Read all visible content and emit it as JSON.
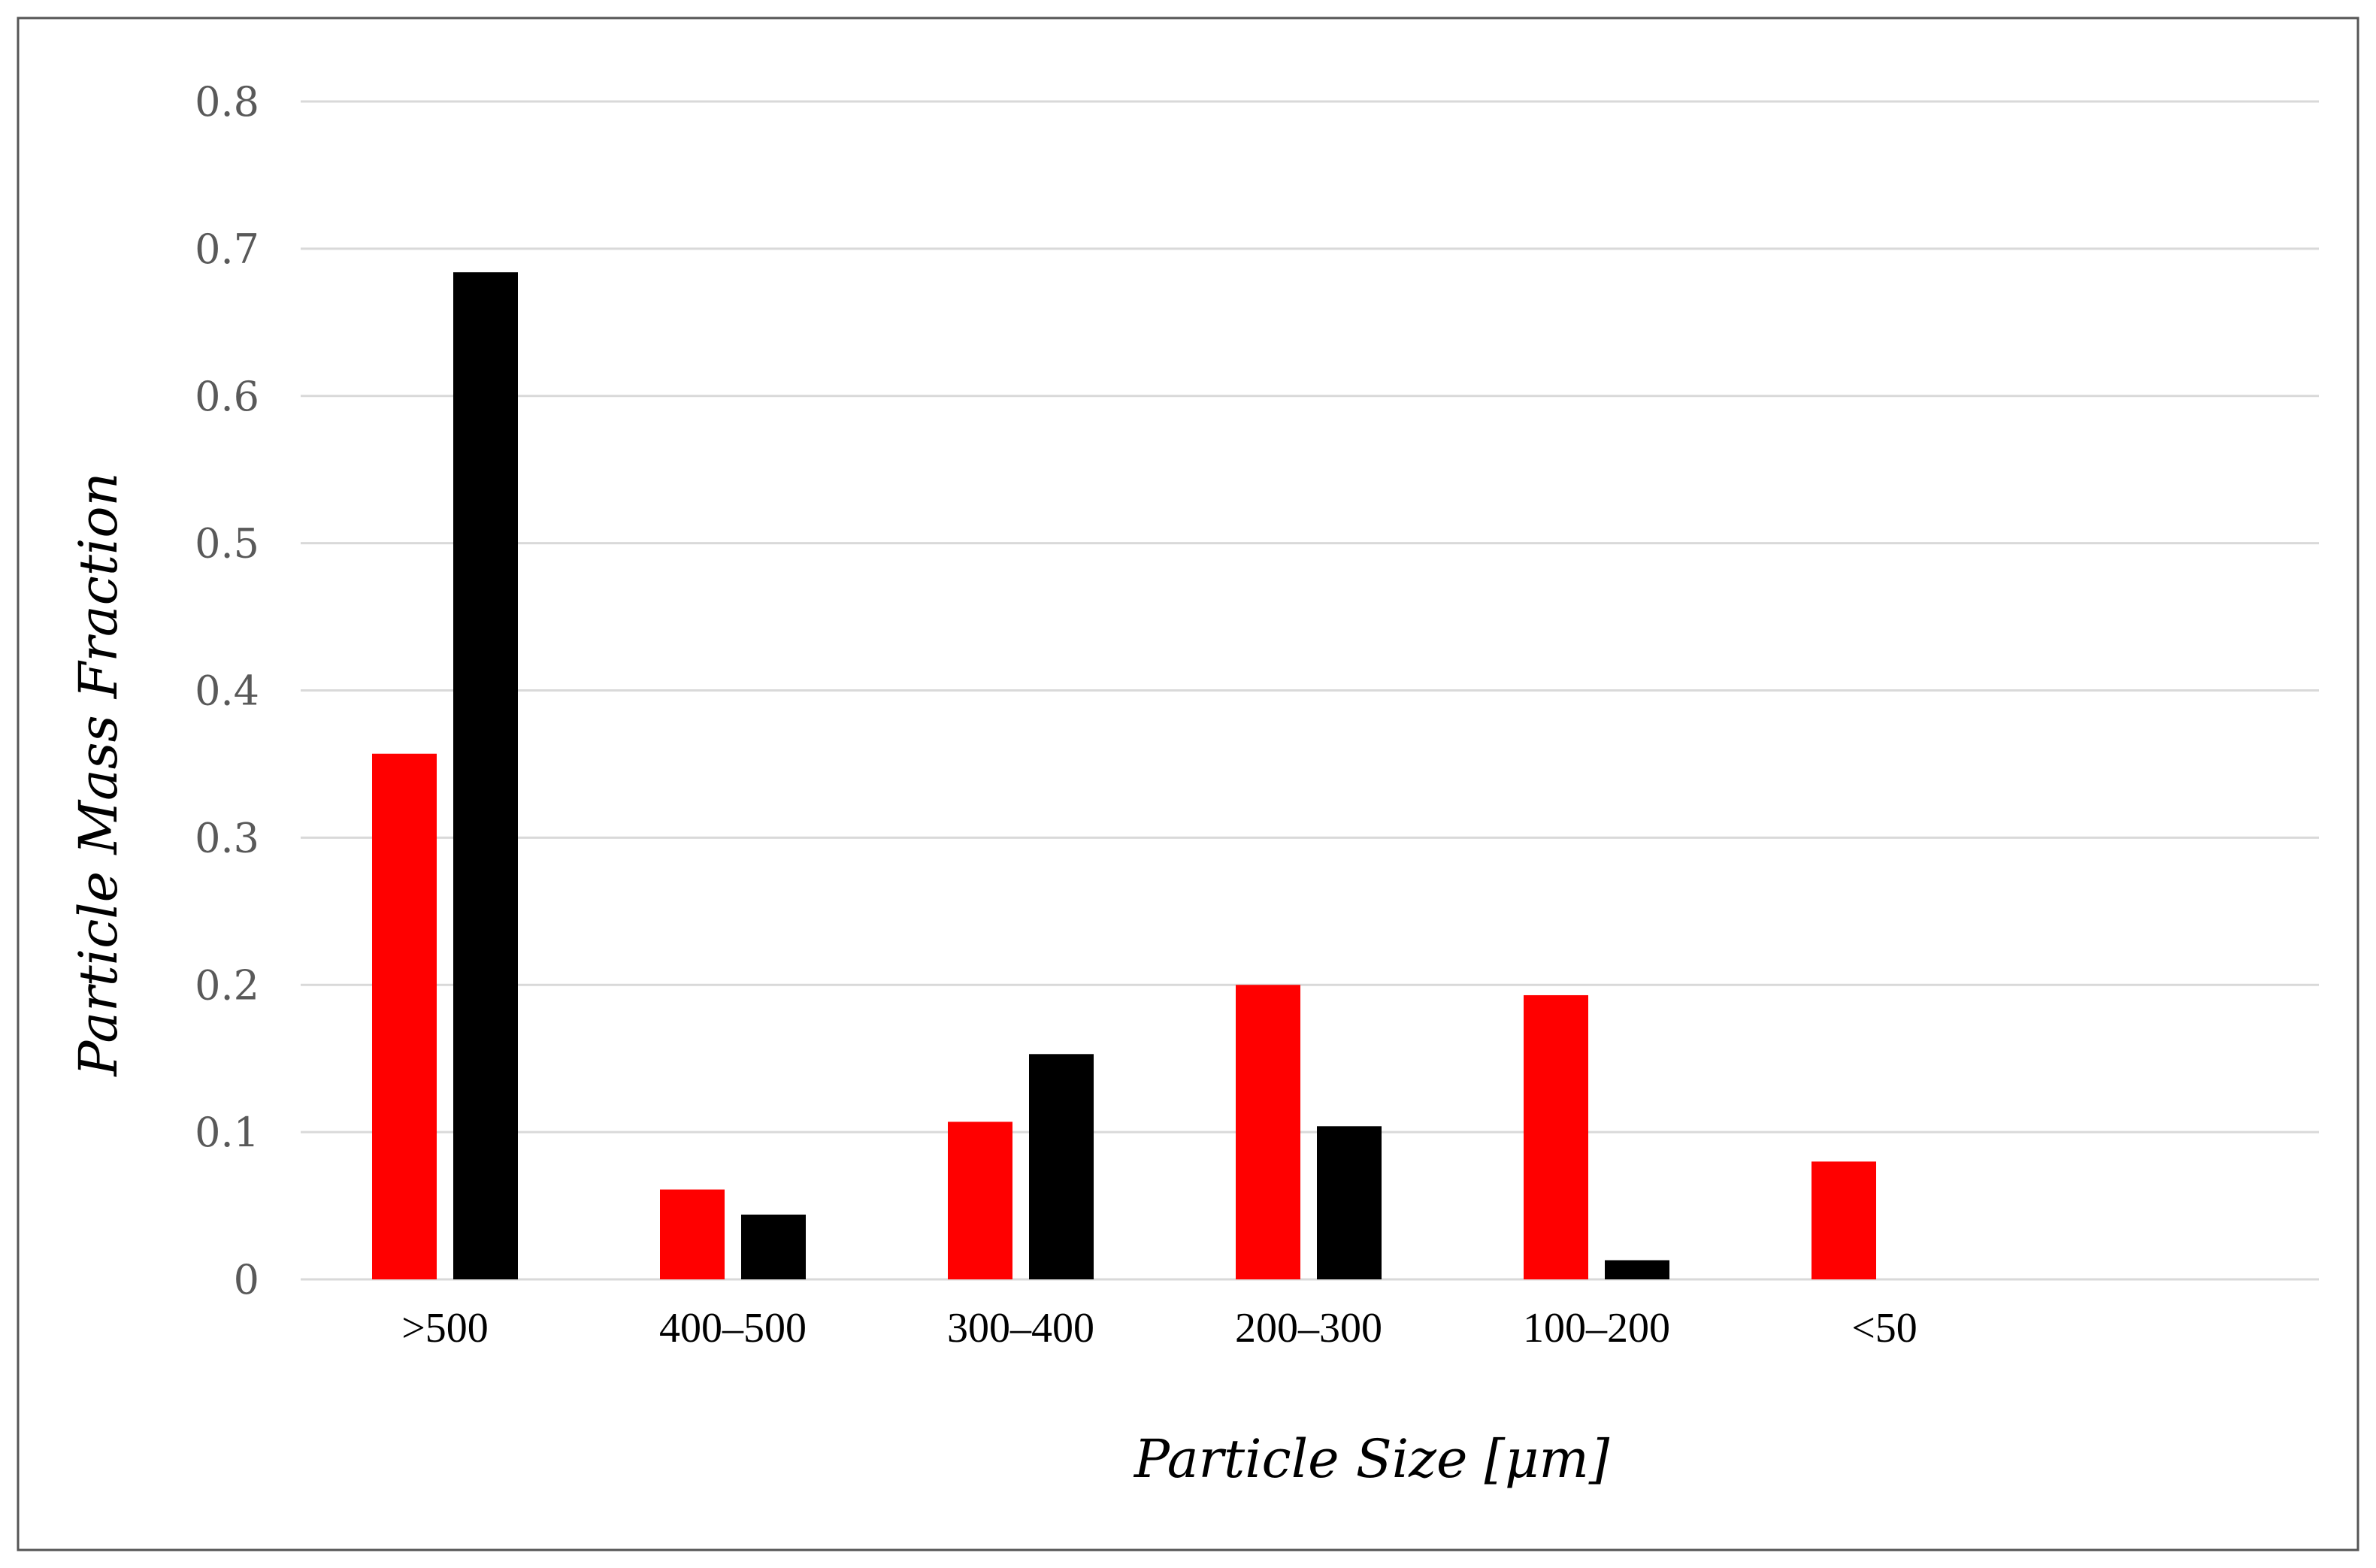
{
  "chart_data": {
    "type": "bar",
    "title": "",
    "xlabel": "Particle Size [μm]",
    "ylabel": "Particle Mass Fraction",
    "categories": [
      ">500",
      "400–500",
      "300–400",
      "200–300",
      "100–200",
      "<50"
    ],
    "series": [
      {
        "color": "#ff0000",
        "values": [
          0.357,
          0.061,
          0.107,
          0.2,
          0.193,
          0.08
        ]
      },
      {
        "color": "#000000",
        "values": [
          0.684,
          0.044,
          0.153,
          0.104,
          0.013,
          null
        ]
      }
    ],
    "ylim": [
      0,
      0.8
    ],
    "yticks": [
      "0",
      "0.1",
      "0.2",
      "0.3",
      "0.4",
      "0.5",
      "0.6",
      "0.7",
      "0.8"
    ],
    "grid": true,
    "legend": "none"
  }
}
